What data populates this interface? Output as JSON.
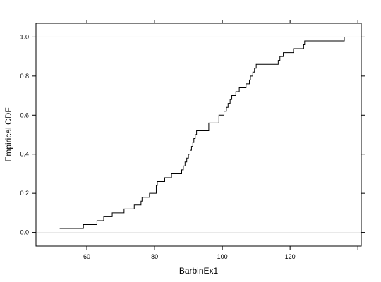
{
  "chart_data": {
    "type": "line",
    "subtype": "empirical-cdf-step",
    "xlabel": "BarbinEx1",
    "ylabel": "Empirical CDF",
    "xlim": [
      45,
      141
    ],
    "ylim": [
      -0.07,
      1.07
    ],
    "x_ticks": [
      60,
      80,
      100,
      120
    ],
    "y_ticks": [
      0.0,
      0.2,
      0.4,
      0.6,
      0.8,
      1.0
    ],
    "x_tick_labels": [
      "60",
      "80",
      "100",
      "120"
    ],
    "y_tick_labels": [
      "0.0",
      "0.2",
      "0.4",
      "0.6",
      "0.8",
      "1.0"
    ],
    "reference_lines_y": [
      0,
      1
    ],
    "line_color": "#000000",
    "reference_line_color": "#e6e6e6",
    "series": [
      {
        "x_start": 52,
        "x_end": 136,
        "steps": [
          [
            59,
            0.04
          ],
          [
            63,
            0.06
          ],
          [
            65,
            0.08
          ],
          [
            67.5,
            0.1
          ],
          [
            71,
            0.12
          ],
          [
            74,
            0.14
          ],
          [
            76,
            0.16
          ],
          [
            76.3,
            0.18
          ],
          [
            78.5,
            0.2
          ],
          [
            80.5,
            0.24
          ],
          [
            80.8,
            0.26
          ],
          [
            83,
            0.28
          ],
          [
            85,
            0.3
          ],
          [
            88,
            0.32
          ],
          [
            88.5,
            0.34
          ],
          [
            89,
            0.36
          ],
          [
            89.5,
            0.38
          ],
          [
            90,
            0.4
          ],
          [
            90.5,
            0.42
          ],
          [
            90.9,
            0.44
          ],
          [
            91.3,
            0.46
          ],
          [
            91.6,
            0.48
          ],
          [
            92,
            0.5
          ],
          [
            92.4,
            0.52
          ],
          [
            96,
            0.56
          ],
          [
            99,
            0.6
          ],
          [
            100.5,
            0.62
          ],
          [
            101.2,
            0.64
          ],
          [
            101.7,
            0.66
          ],
          [
            102.3,
            0.68
          ],
          [
            102.8,
            0.7
          ],
          [
            104,
            0.72
          ],
          [
            105,
            0.74
          ],
          [
            107,
            0.76
          ],
          [
            108,
            0.78
          ],
          [
            108.3,
            0.8
          ],
          [
            109,
            0.82
          ],
          [
            109.5,
            0.84
          ],
          [
            110,
            0.86
          ],
          [
            116.5,
            0.88
          ],
          [
            117,
            0.9
          ],
          [
            118,
            0.92
          ],
          [
            121,
            0.94
          ],
          [
            124,
            0.96
          ],
          [
            124.3,
            0.98
          ],
          [
            136,
            1.0
          ]
        ]
      }
    ]
  }
}
